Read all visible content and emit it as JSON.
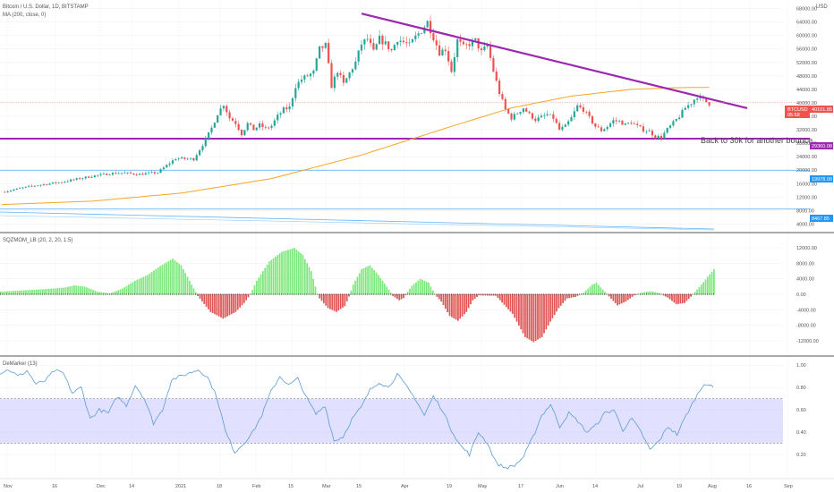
{
  "header": {
    "title": "Bitcoin / U.S. Dollar, 1D, BITSTAMP",
    "ma_label": "MA (200, close, 0)",
    "currency": "USD"
  },
  "indicators": {
    "sqz_label": "SQZMOM_LB (20, 2, 20, 1.5)",
    "dem_label": "DeMarker (13)"
  },
  "annotation": "Back to 30k for another bounce",
  "price_tags": {
    "current": {
      "value": "40101.85",
      "symbol": "BTCUSD",
      "time": "05:58",
      "color": "#ef5350"
    },
    "support": {
      "value": "29360.08",
      "color": "#9c27b0"
    },
    "level2": {
      "value": "19978.09",
      "color": "#2196f3"
    },
    "level3": {
      "value": "8467.85",
      "color": "#2196f3"
    }
  },
  "colors": {
    "up": "#26a69a",
    "down": "#ef5350",
    "ma": "#f5a623",
    "trend": "#9c27b0",
    "sqz_up": "#7ee87e",
    "sqz_down": "#e05555",
    "dem_line": "#5b9bd5",
    "dem_band": "#c8c8ff"
  },
  "chart_data": [
    {
      "type": "candlestick",
      "title": "Bitcoin / U.S. Dollar, 1D, BITSTAMP",
      "x_ticks": [
        "Nov",
        "16",
        "Dec",
        "14",
        "2021",
        "18",
        "Feb",
        "15",
        "Mar",
        "15",
        "Apr",
        "19",
        "May",
        "17",
        "Jun",
        "14",
        "Jul",
        "19",
        "Aug",
        "16",
        "Sep"
      ],
      "y_ticks": [
        4000,
        8000,
        12000,
        16000,
        20000,
        24000,
        28000,
        32000,
        36000,
        40000,
        44000,
        48000,
        52000,
        56000,
        60000,
        64000,
        68000
      ],
      "ylim": [
        2000,
        70000
      ],
      "close_path": [
        [
          0,
          13500
        ],
        [
          10,
          15300
        ],
        [
          20,
          16500
        ],
        [
          30,
          18200
        ],
        [
          36,
          19000
        ],
        [
          40,
          19200
        ],
        [
          46,
          18800
        ],
        [
          52,
          19300
        ],
        [
          58,
          23500
        ],
        [
          64,
          23300
        ],
        [
          68,
          29000
        ],
        [
          70,
          32500
        ],
        [
          72,
          36800
        ],
        [
          74,
          39600
        ],
        [
          76,
          35500
        ],
        [
          78,
          34000
        ],
        [
          80,
          30800
        ],
        [
          82,
          33800
        ],
        [
          84,
          32100
        ],
        [
          86,
          33400
        ],
        [
          88,
          32300
        ],
        [
          90,
          33200
        ],
        [
          92,
          36000
        ],
        [
          94,
          38000
        ],
        [
          96,
          38600
        ],
        [
          98,
          45000
        ],
        [
          100,
          47000
        ],
        [
          102,
          48000
        ],
        [
          104,
          49000
        ],
        [
          106,
          56000
        ],
        [
          108,
          57000
        ],
        [
          110,
          45000
        ],
        [
          112,
          49500
        ],
        [
          114,
          45500
        ],
        [
          116,
          48800
        ],
        [
          118,
          52000
        ],
        [
          120,
          57500
        ],
        [
          122,
          59000
        ],
        [
          124,
          55000
        ],
        [
          126,
          59000
        ],
        [
          128,
          57500
        ],
        [
          130,
          55500
        ],
        [
          132,
          59000
        ],
        [
          134,
          58000
        ],
        [
          136,
          57000
        ],
        [
          138,
          59500
        ],
        [
          140,
          61500
        ],
        [
          142,
          64000
        ],
        [
          144,
          59500
        ],
        [
          146,
          55000
        ],
        [
          148,
          56000
        ],
        [
          150,
          49500
        ],
        [
          152,
          58500
        ],
        [
          154,
          56500
        ],
        [
          156,
          57500
        ],
        [
          158,
          58500
        ],
        [
          160,
          55000
        ],
        [
          162,
          57000
        ],
        [
          164,
          49500
        ],
        [
          166,
          43000
        ],
        [
          168,
          38000
        ],
        [
          170,
          35500
        ],
        [
          172,
          37000
        ],
        [
          174,
          38500
        ],
        [
          176,
          36500
        ],
        [
          178,
          35000
        ],
        [
          180,
          35700
        ],
        [
          182,
          36500
        ],
        [
          184,
          35500
        ],
        [
          186,
          32000
        ],
        [
          188,
          33000
        ],
        [
          190,
          35500
        ],
        [
          192,
          39000
        ],
        [
          194,
          38000
        ],
        [
          196,
          35500
        ],
        [
          198,
          33000
        ],
        [
          200,
          31800
        ],
        [
          202,
          33000
        ],
        [
          204,
          34700
        ],
        [
          206,
          34500
        ],
        [
          208,
          33500
        ],
        [
          210,
          34200
        ],
        [
          212,
          33000
        ],
        [
          214,
          32000
        ],
        [
          216,
          31500
        ],
        [
          218,
          30000
        ],
        [
          220,
          29800
        ],
        [
          222,
          32100
        ],
        [
          224,
          34000
        ],
        [
          226,
          36000
        ],
        [
          228,
          38500
        ],
        [
          230,
          40000
        ],
        [
          232,
          42000
        ],
        [
          234,
          40800
        ],
        [
          236,
          39800
        ]
      ],
      "ma200": [
        [
          0,
          9800
        ],
        [
          30,
          10800
        ],
        [
          60,
          13200
        ],
        [
          90,
          17500
        ],
        [
          120,
          24500
        ],
        [
          150,
          33000
        ],
        [
          170,
          38500
        ],
        [
          190,
          42000
        ],
        [
          210,
          44000
        ],
        [
          225,
          44500
        ],
        [
          236,
          44600
        ]
      ],
      "trendline": [
        [
          120,
          66500
        ],
        [
          236,
          40000
        ]
      ],
      "support_line": 29360.08,
      "levels": [
        19978.09,
        8467.85
      ],
      "current_price": 40101.85
    },
    {
      "type": "bar",
      "title": "SQZMOM_LB (20, 2, 20, 1.5)",
      "y_ticks": [
        12000,
        8000,
        4000,
        0,
        -4000,
        -8000,
        -12000
      ],
      "ylim": [
        -15500,
        15500
      ],
      "values": [
        [
          0,
          700
        ],
        [
          20,
          1300
        ],
        [
          30,
          1700
        ],
        [
          35,
          2300
        ],
        [
          40,
          2000
        ],
        [
          46,
          700
        ],
        [
          52,
          200
        ],
        [
          58,
          1500
        ],
        [
          64,
          3500
        ],
        [
          70,
          5000
        ],
        [
          76,
          7300
        ],
        [
          82,
          9200
        ],
        [
          86,
          7500
        ],
        [
          88,
          5500
        ],
        [
          91,
          2500
        ],
        [
          94,
          -400
        ],
        [
          100,
          -4500
        ],
        [
          106,
          -6200
        ],
        [
          112,
          -4500
        ],
        [
          116,
          -2200
        ],
        [
          119,
          0
        ],
        [
          122,
          3500
        ],
        [
          128,
          8500
        ],
        [
          134,
          11000
        ],
        [
          140,
          12000
        ],
        [
          144,
          10200
        ],
        [
          148,
          6000
        ],
        [
          151,
          0
        ],
        [
          152,
          -1000
        ],
        [
          156,
          -3500
        ],
        [
          160,
          -4500
        ],
        [
          164,
          -3000
        ],
        [
          166,
          -500
        ],
        [
          168,
          2500
        ],
        [
          172,
          6500
        ],
        [
          176,
          7500
        ],
        [
          180,
          5000
        ],
        [
          184,
          2000
        ],
        [
          187,
          -400
        ],
        [
          190,
          -1500
        ],
        [
          192,
          -900
        ],
        [
          196,
          2200
        ],
        [
          200,
          4000
        ],
        [
          204,
          3000
        ],
        [
          207,
          0
        ],
        [
          210,
          -1800
        ],
        [
          214,
          -5500
        ],
        [
          218,
          -6800
        ],
        [
          222,
          -4500
        ],
        [
          225,
          -1500
        ],
        [
          228,
          -200
        ],
        [
          236,
          -300
        ],
        [
          244,
          -5000
        ],
        [
          250,
          -11000
        ],
        [
          254,
          -12300
        ],
        [
          258,
          -11000
        ],
        [
          262,
          -7000
        ],
        [
          266,
          -3500
        ],
        [
          270,
          -1000
        ],
        [
          274,
          -600
        ],
        [
          278,
          500
        ],
        [
          282,
          2500
        ],
        [
          284,
          3000
        ],
        [
          286,
          1800
        ],
        [
          290,
          -500
        ],
        [
          294,
          -2800
        ],
        [
          298,
          -1800
        ],
        [
          302,
          -200
        ],
        [
          306,
          500
        ],
        [
          310,
          800
        ],
        [
          314,
          300
        ],
        [
          318,
          -800
        ],
        [
          322,
          -2500
        ],
        [
          326,
          -2200
        ],
        [
          330,
          0
        ],
        [
          334,
          2500
        ],
        [
          340,
          6500
        ]
      ]
    },
    {
      "type": "line",
      "title": "DeMarker (13)",
      "y_ticks": [
        1.0,
        0.8,
        0.6,
        0.4,
        0.2
      ],
      "ylim": [
        0,
        1.05
      ],
      "band": [
        0.3,
        0.7
      ],
      "values": [
        [
          0,
          0.93
        ],
        [
          4,
          0.96
        ],
        [
          8,
          0.9
        ],
        [
          12,
          0.95
        ],
        [
          16,
          0.83
        ],
        [
          20,
          0.86
        ],
        [
          24,
          0.95
        ],
        [
          28,
          0.93
        ],
        [
          32,
          0.75
        ],
        [
          36,
          0.8
        ],
        [
          40,
          0.52
        ],
        [
          44,
          0.6
        ],
        [
          48,
          0.57
        ],
        [
          52,
          0.72
        ],
        [
          56,
          0.64
        ],
        [
          60,
          0.82
        ],
        [
          64,
          0.7
        ],
        [
          68,
          0.48
        ],
        [
          72,
          0.6
        ],
        [
          76,
          0.87
        ],
        [
          80,
          0.9
        ],
        [
          84,
          0.93
        ],
        [
          88,
          0.96
        ],
        [
          92,
          0.89
        ],
        [
          96,
          0.72
        ],
        [
          100,
          0.4
        ],
        [
          104,
          0.22
        ],
        [
          108,
          0.3
        ],
        [
          112,
          0.4
        ],
        [
          116,
          0.55
        ],
        [
          120,
          0.76
        ],
        [
          124,
          0.9
        ],
        [
          128,
          0.82
        ],
        [
          132,
          0.88
        ],
        [
          136,
          0.7
        ],
        [
          140,
          0.56
        ],
        [
          144,
          0.64
        ],
        [
          148,
          0.32
        ],
        [
          152,
          0.36
        ],
        [
          156,
          0.52
        ],
        [
          160,
          0.62
        ],
        [
          164,
          0.78
        ],
        [
          168,
          0.85
        ],
        [
          172,
          0.8
        ],
        [
          176,
          0.92
        ],
        [
          180,
          0.81
        ],
        [
          184,
          0.7
        ],
        [
          188,
          0.55
        ],
        [
          192,
          0.72
        ],
        [
          196,
          0.6
        ],
        [
          200,
          0.42
        ],
        [
          204,
          0.28
        ],
        [
          208,
          0.2
        ],
        [
          212,
          0.4
        ],
        [
          216,
          0.3
        ],
        [
          220,
          0.12
        ],
        [
          224,
          0.08
        ],
        [
          228,
          0.1
        ],
        [
          232,
          0.18
        ],
        [
          236,
          0.35
        ],
        [
          240,
          0.55
        ],
        [
          244,
          0.65
        ],
        [
          248,
          0.45
        ],
        [
          252,
          0.57
        ],
        [
          256,
          0.5
        ],
        [
          260,
          0.4
        ],
        [
          264,
          0.46
        ],
        [
          268,
          0.57
        ],
        [
          272,
          0.6
        ],
        [
          276,
          0.42
        ],
        [
          280,
          0.52
        ],
        [
          284,
          0.4
        ],
        [
          288,
          0.24
        ],
        [
          292,
          0.32
        ],
        [
          296,
          0.45
        ],
        [
          300,
          0.38
        ],
        [
          304,
          0.55
        ],
        [
          308,
          0.7
        ],
        [
          312,
          0.84
        ],
        [
          316,
          0.8
        ]
      ]
    }
  ]
}
